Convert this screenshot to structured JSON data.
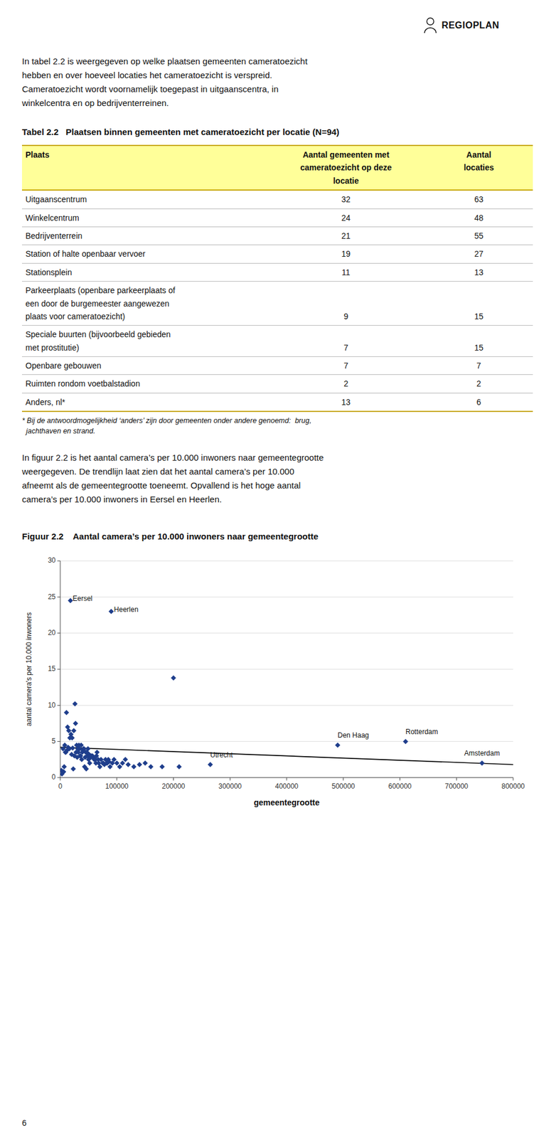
{
  "logo_text": "REGIOPLAN",
  "intro_lines": [
    "In tabel 2.2 is weergegeven op welke plaatsen gemeenten cameratoezicht",
    "hebben en over hoeveel locaties het cameratoezicht is verspreid.",
    "Cameratoezicht wordt voornamelijk toegepast in uitgaanscentra, in",
    "winkelcentra en op bedrijventerreinen."
  ],
  "table": {
    "title": [
      "Tabel 2.2",
      "   Plaatsen binnen gemeenten met cameratoezicht per locatie (N=94)"
    ],
    "header_color": "#FFFF99",
    "border_color": "#C8A800",
    "columns": [
      "Plaats",
      "Aantal gemeenten met\ncameratoezicht op deze\nlocatie",
      "Aantal\nlocaties"
    ],
    "rows": [
      [
        "Uitgaanscentrum",
        32,
        63
      ],
      [
        "Winkelcentrum",
        24,
        48
      ],
      [
        "Bedrijventerrein",
        21,
        55
      ],
      [
        "Station of halte openbaar vervoer",
        19,
        27
      ],
      [
        "Stationsplein",
        11,
        13
      ],
      [
        "Parkeerplaats (openbare parkeerplaats of\neen door de burgemeester aangewezen\nplaats voor cameratoezicht)",
        9,
        15
      ],
      [
        "Speciale buurten (bijvoorbeeld gebieden\nmet prostitutie)",
        7,
        15
      ],
      [
        "Openbare gebouwen",
        7,
        7
      ],
      [
        "Ruimten rondom voetbalstadion",
        2,
        2
      ],
      [
        "Anders, nl*",
        13,
        6
      ]
    ],
    "footnote": [
      "* Bij de antwoordmogelijkheid ‘anders’ zijn door gemeenten onder andere genoemd:  brug,",
      "  jachthaven en strand."
    ]
  },
  "paragraph_lines": [
    "In figuur 2.2 is het aantal camera’s per 10.000 inwoners naar gemeentegrootte",
    "weergegeven. De trendlijn laat zien dat het aantal camera’s per 10.000",
    "afneemt als de gemeentegrootte toeneemt. Opvallend is het hoge aantal",
    "camera’s per 10.000 inwoners in Eersel en Heerlen."
  ],
  "footer_number": "6",
  "chart_data": {
    "type": "scatter",
    "title": "Figuur 2.2    Aantal camera’s per 10.000 inwoners naar gemeentegrootte",
    "x_label": "gemeentegrootte",
    "y_label": "aantal camera's per 10.000 inwoners",
    "xlim": [
      0,
      800000
    ],
    "xticks": [
      0,
      100000,
      200000,
      300000,
      400000,
      500000,
      600000,
      700000,
      800000
    ],
    "ylim": [
      0,
      30
    ],
    "yticks": [
      0,
      5,
      10,
      15,
      20,
      25,
      30
    ],
    "grid": true,
    "series": [
      {
        "type": "scatter",
        "color": "#1F3E8C",
        "marker": "diamond",
        "x": [
          2000,
          3000,
          4000,
          5000,
          6000,
          7000,
          8000,
          9000,
          10000,
          11000,
          12000,
          13000,
          14000,
          15000,
          16000,
          17000,
          18000,
          19000,
          20000,
          21000,
          22000,
          23000,
          24000,
          25000,
          26000,
          27000,
          28000,
          29000,
          30000,
          31000,
          32000,
          33000,
          34000,
          35000,
          36000,
          37000,
          38000,
          39000,
          40000,
          41000,
          42000,
          43000,
          44000,
          45000,
          46000,
          47000,
          48000,
          49000,
          50000,
          51000,
          52000,
          53000,
          54000,
          55000,
          57000,
          58000,
          60000,
          62000,
          63000,
          64000,
          65000,
          67000,
          68000,
          70000,
          72000,
          75000,
          76000,
          78000,
          80000,
          82000,
          83000,
          85000,
          86000,
          88000,
          90000,
          92000,
          95000,
          100000,
          105000,
          110000,
          115000,
          120000,
          130000,
          140000,
          150000,
          160000,
          180000,
          200000,
          210000,
          265000,
          490000,
          610000,
          745000
        ],
        "values": [
          1.0,
          0.5,
          0.8,
          4.0,
          0.8,
          1.5,
          4.5,
          3.5,
          3.5,
          9.0,
          3.8,
          7.0,
          4.2,
          6.5,
          4.0,
          5.5,
          24.5,
          6.0,
          3.2,
          5.5,
          4.1,
          1.2,
          6.5,
          3.0,
          10.2,
          7.5,
          3.5,
          4.5,
          2.8,
          4.0,
          3.5,
          4.5,
          4.0,
          3.0,
          3.0,
          4.5,
          2.5,
          3.5,
          3.8,
          4.0,
          4.0,
          1.5,
          2.8,
          3.5,
          1.2,
          3.5,
          3.0,
          4.0,
          2.5,
          3.2,
          2.0,
          3.0,
          2.8,
          3.0,
          3.0,
          2.8,
          2.5,
          2.5,
          2.0,
          3.0,
          3.5,
          2.5,
          2.0,
          1.5,
          2.5,
          2.0,
          2.0,
          1.8,
          2.5,
          2.0,
          2.0,
          2.5,
          2.2,
          1.5,
          23.0,
          2.0,
          2.5,
          2.0,
          1.5,
          2.0,
          2.5,
          1.8,
          1.5,
          1.8,
          2.0,
          1.5,
          1.5,
          13.8,
          1.5,
          1.8,
          4.5,
          5.0,
          2.0
        ]
      },
      {
        "type": "line",
        "color": "#000000",
        "x": [
          0,
          800000
        ],
        "values": [
          4.2,
          1.8
        ]
      }
    ],
    "annotations": [
      {
        "text": "Eersel",
        "x": 22000,
        "y": 24.2
      },
      {
        "text": "Heerlen",
        "x": 95000,
        "y": 22.7
      },
      {
        "text": "Den Haag",
        "x": 490000,
        "y": 5.3
      },
      {
        "text": "Rotterdam",
        "x": 610000,
        "y": 5.8
      },
      {
        "text": "Amsterdam",
        "x": 745000,
        "y": 2.8
      },
      {
        "text": "Utrecht",
        "x": 265000,
        "y": 2.6
      }
    ]
  }
}
